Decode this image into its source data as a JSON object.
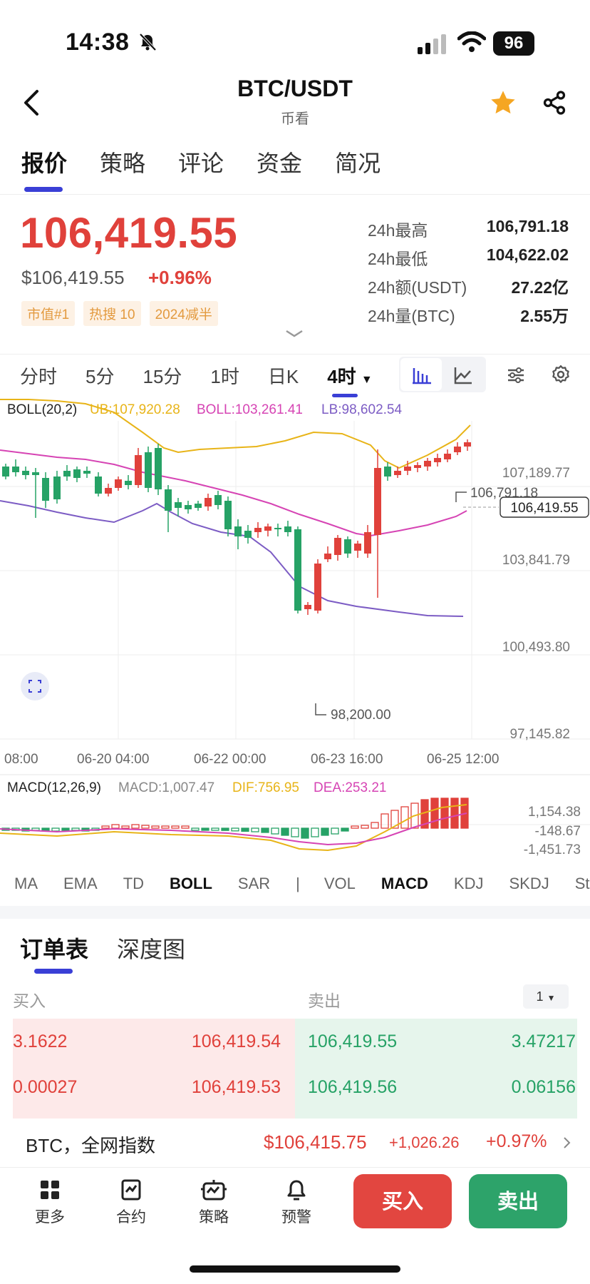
{
  "status_bar": {
    "time": "14:38",
    "battery": "96"
  },
  "header": {
    "title": "BTC/USDT",
    "subtitle": "币看"
  },
  "tabs": [
    "报价",
    "策略",
    "评论",
    "资金",
    "简况"
  ],
  "quote": {
    "price": "106,419.55",
    "usd_price": "$106,419.55",
    "change_pct": "+0.96%",
    "badges": [
      "市值#1",
      "热搜 10",
      "2024减半"
    ],
    "stats": [
      {
        "label": "24h最高",
        "value": "106,791.18"
      },
      {
        "label": "24h最低",
        "value": "104,622.02"
      },
      {
        "label": "24h额(USDT)",
        "value": "27.22亿"
      },
      {
        "label": "24h量(BTC)",
        "value": "2.55万"
      }
    ]
  },
  "intervals": [
    "分时",
    "5分",
    "15分",
    "1时",
    "日K",
    "4时"
  ],
  "chart": {
    "boll_label": "BOLL(20,2)",
    "ub_label": "UB:107,920.28",
    "boll_mid_label": "BOLL:103,261.41",
    "lb_label": "LB:98,602.54",
    "y_labels": [
      "107,189.77",
      "103,841.79",
      "100,493.80",
      "97,145.82"
    ],
    "high_marker": "106,791.18",
    "low_marker": "98,200.00",
    "current_price": "106,419.55",
    "x_labels": [
      "08:00",
      "06-20 04:00",
      "06-22 00:00",
      "06-23 16:00",
      "06-25 12:00"
    ],
    "macd_label": "MACD(12,26,9)",
    "macd_value": "MACD:1,007.47",
    "dif_value": "DIF:756.95",
    "dea_value": "DEA:253.21",
    "macd_y_labels": [
      "1,154.38",
      "-148.67",
      "-1,451.73"
    ],
    "colors": {
      "up": "#e0413b",
      "down": "#26a266",
      "ub": "#e8b418",
      "mid": "#d644b4",
      "lb": "#7c5cc4",
      "dif": "#e8b418",
      "dea": "#d644b4"
    }
  },
  "indicators_main": [
    "MA",
    "EMA",
    "TD",
    "BOLL",
    "SAR"
  ],
  "indicators_sub": [
    "VOL",
    "MACD",
    "KDJ",
    "SKDJ",
    "Sto"
  ],
  "orderbook": {
    "tabs": [
      "订单表",
      "深度图"
    ],
    "buy_header": "买入",
    "sell_header": "卖出",
    "precision": "1",
    "rows": [
      {
        "buy_qty": "3.1622",
        "buy_price": "106,419.54",
        "sell_price": "106,419.55",
        "sell_qty": "3.47217"
      },
      {
        "buy_qty": "0.00027",
        "buy_price": "106,419.53",
        "sell_price": "106,419.56",
        "sell_qty": "0.06156"
      }
    ]
  },
  "index_row": {
    "label": "BTC，全网指数",
    "price": "$106,415.75",
    "change": "+1,026.26",
    "pct": "+0.97%"
  },
  "bottom_nav": [
    "更多",
    "合约",
    "策略",
    "预警"
  ],
  "actions": {
    "buy": "买入",
    "sell": "卖出"
  }
}
